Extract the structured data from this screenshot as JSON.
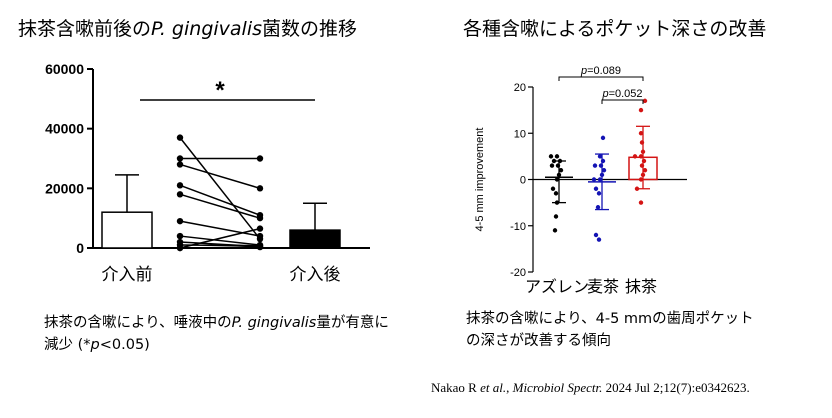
{
  "titles": {
    "left_prefix": "抹茶含嗽前後の",
    "left_italic": "P.  gingivalis",
    "left_suffix": "菌数の推移",
    "right": "各種含嗽によるポケット深さの改善"
  },
  "captions": {
    "left_1": "抹茶の含嗽により、唾液中の",
    "left_italic": "P. gingivalis",
    "left_2": "量が有意に",
    "left_3": "減少 (*",
    "left_p": "p",
    "left_4": "<0.05)",
    "right_1": "抹茶の含嗽により、4-5 mmの歯周ポケット",
    "right_2": "の深さが改善する傾向"
  },
  "citation": {
    "authors": "Nakao R ",
    "etal": "et al.",
    "sep": ", ",
    "journal": "Microbiol Spectr.",
    "rest": " 2024 Jul 2;12(7):e0342623."
  },
  "chart_data": [
    {
      "type": "bar",
      "categories": [
        "介入前",
        "介入後"
      ],
      "values": [
        12000,
        6000
      ],
      "error_upper": [
        24500,
        15000
      ],
      "bar_fill": [
        "#ffffff",
        "#000000"
      ],
      "ylim": [
        0,
        60000
      ],
      "yticks": [
        "0",
        "20000",
        "40000",
        "60000"
      ],
      "ytick_values": [
        0,
        20000,
        40000,
        60000
      ],
      "paired_lines": [
        [
          37000,
          3000
        ],
        [
          30000,
          30000
        ],
        [
          28000,
          20000
        ],
        [
          21000,
          11000
        ],
        [
          18000,
          10000
        ],
        [
          9000,
          4000
        ],
        [
          4000,
          1000
        ],
        [
          2000,
          500
        ],
        [
          1000,
          800
        ],
        [
          0,
          6500
        ],
        [
          0,
          300
        ]
      ],
      "significance": "*"
    },
    {
      "type": "scatter",
      "categories": [
        "アズレン",
        "麦茶",
        "抹茶"
      ],
      "ylabel": "4-5 mm improvement",
      "ylim": [
        -20,
        20
      ],
      "yticks": [
        "-20",
        "-10",
        "0",
        "10",
        "20"
      ],
      "ytick_values": [
        -20,
        -10,
        0,
        10,
        20
      ],
      "colors": [
        "#000000",
        "#1414b4",
        "#d41414"
      ],
      "means": [
        0.5,
        -0.5,
        4.8
      ],
      "sd_upper": [
        4,
        5.5,
        11.5
      ],
      "sd_lower": [
        -5,
        -6.5,
        -2
      ],
      "points": [
        [
          -11,
          -8,
          -5,
          -3,
          -2,
          0,
          1,
          2,
          3,
          3,
          4,
          4,
          5,
          5
        ],
        [
          -13,
          -12,
          -6,
          -3,
          -2,
          0,
          0,
          1,
          2,
          3,
          3,
          4,
          5,
          9
        ],
        [
          -5,
          -2,
          0,
          1,
          2,
          3,
          4,
          5,
          5,
          6,
          8,
          10,
          15,
          17
        ]
      ],
      "comparisons": [
        {
          "label_p": "p",
          "label_rest": "=0.089",
          "from": 0,
          "to": 2
        },
        {
          "label_p": "p",
          "label_rest": "=0.052",
          "from": 1,
          "to": 2
        }
      ]
    }
  ]
}
